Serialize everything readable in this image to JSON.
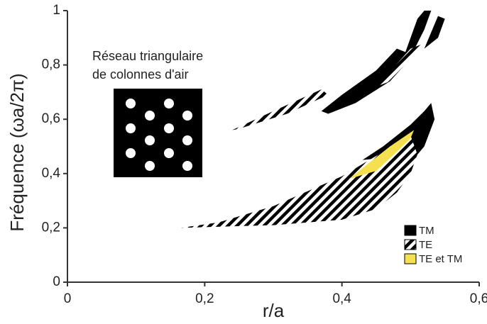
{
  "chart_data": {
    "type": "region",
    "xlabel": "r/a",
    "ylabel": "Fréquence (ωa/2π)",
    "inset_text": [
      "Réseau triangulaire",
      "de colonnes d'air"
    ],
    "xlim": [
      0,
      0.6
    ],
    "ylim": [
      0,
      1
    ],
    "xticks": [
      0,
      {
        "value": 0.2,
        "label": "0,2"
      },
      {
        "value": 0.4,
        "label": "0,4"
      },
      {
        "value": 0.6,
        "label": "0,6"
      }
    ],
    "yticks": [
      0,
      {
        "value": 0.2,
        "label": "0,2"
      },
      {
        "value": 0.4,
        "label": "0,4"
      },
      {
        "value": 0.6,
        "label": "0,6"
      },
      {
        "value": 0.8,
        "label": "0,8"
      },
      1
    ],
    "legend": "lower right",
    "series": [
      {
        "name": "TM",
        "color": "#000000",
        "hatch": false,
        "regions": [
          {
            "x": [
              0.43,
              0.46,
              0.5,
              0.52,
              0.53,
              0.535,
              0.52,
              0.5,
              0.47
            ],
            "y": [
              0.45,
              0.5,
              0.58,
              0.63,
              0.66,
              0.6,
              0.5,
              0.44,
              0.46
            ]
          },
          {
            "x": [
              0.37,
              0.4,
              0.45,
              0.48,
              0.5,
              0.47,
              0.42,
              0.38
            ],
            "y": [
              0.63,
              0.69,
              0.78,
              0.86,
              0.84,
              0.74,
              0.66,
              0.62
            ]
          },
          {
            "x": [
              0.49,
              0.51,
              0.52,
              0.53,
              0.52,
              0.5
            ],
            "y": [
              0.83,
              0.97,
              1,
              1,
              0.93,
              0.83
            ]
          },
          {
            "x": [
              0.52,
              0.54,
              0.55,
              0.54
            ],
            "y": [
              0.86,
              0.98,
              0.97,
              0.9
            ]
          }
        ]
      },
      {
        "name": "TE",
        "color": "#000000",
        "hatch": true,
        "regions": [
          {
            "x": [
              0.165,
              0.3,
              0.4,
              0.45,
              0.48,
              0.5,
              0.51,
              0.5,
              0.46,
              0.4,
              0.3,
              0.22
            ],
            "y": [
              0.2,
              0.21,
              0.23,
              0.27,
              0.33,
              0.4,
              0.47,
              0.54,
              0.48,
              0.39,
              0.28,
              0.22
            ]
          },
          {
            "x": [
              0.24,
              0.3,
              0.37,
              0.38,
              0.32,
              0.25
            ],
            "y": [
              0.56,
              0.63,
              0.71,
              0.69,
              0.62,
              0.565
            ]
          },
          {
            "x": [
              0.45,
              0.5,
              0.52,
              0.47
            ],
            "y": [
              0.72,
              0.86,
              0.88,
              0.74
            ]
          }
        ]
      },
      {
        "name": "TE et TM",
        "color": "#f5e050",
        "hatch": false,
        "regions": [
          {
            "x": [
              0.41,
              0.45,
              0.48,
              0.5,
              0.505,
              0.47,
              0.43
            ],
            "y": [
              0.38,
              0.41,
              0.48,
              0.53,
              0.56,
              0.5,
              0.42
            ]
          }
        ]
      }
    ]
  }
}
